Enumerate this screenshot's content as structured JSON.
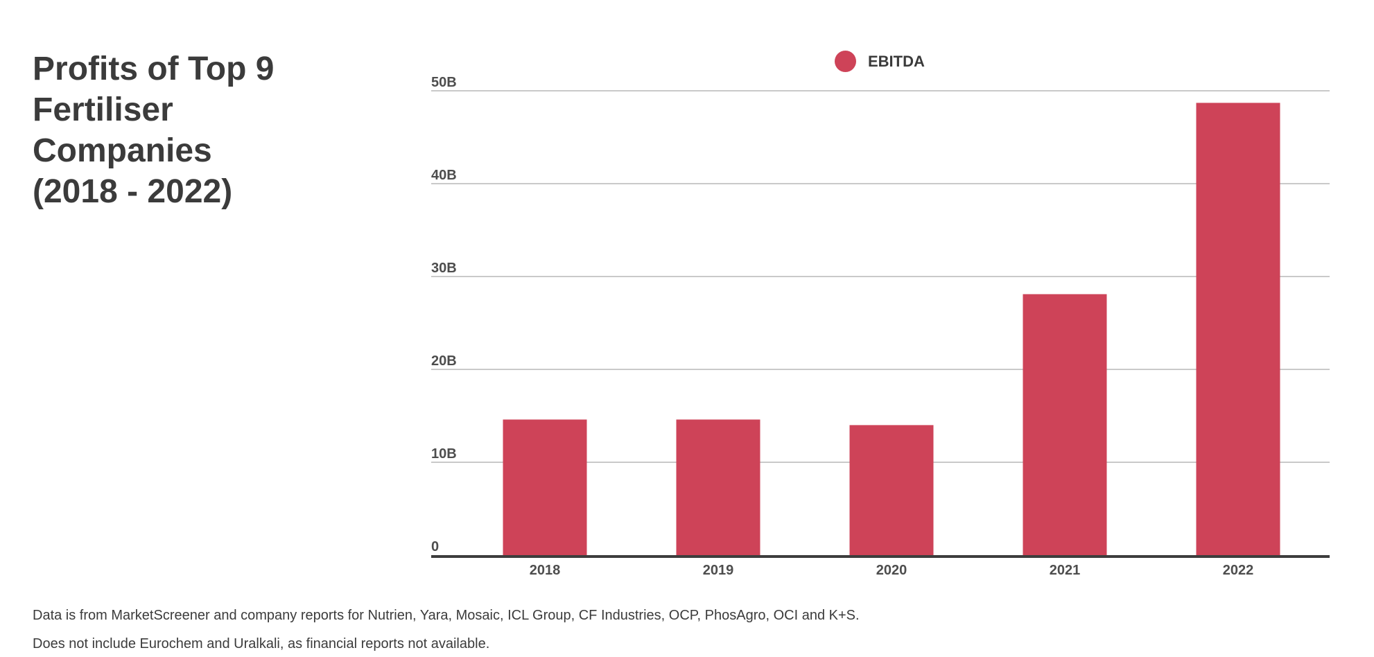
{
  "header": {
    "title": "Profits of Top 9\nFertiliser\nCompanies\n(2018 - 2022)"
  },
  "legend": {
    "label": "EBITDA",
    "color": "#ce4358"
  },
  "chart_data": {
    "type": "bar",
    "title": "Profits of Top 9 Fertiliser Companies (2018 - 2022)",
    "series": [
      {
        "name": "EBITDA",
        "values": [
          14.6,
          14.6,
          14.0,
          28.1,
          48.7
        ]
      }
    ],
    "categories": [
      "2018",
      "2019",
      "2020",
      "2021",
      "2022"
    ],
    "unit": "billions (B)",
    "ylim": [
      0,
      50
    ],
    "yticks": [
      {
        "value": 0,
        "label": "0"
      },
      {
        "value": 10,
        "label": "10B"
      },
      {
        "value": 20,
        "label": "20B"
      },
      {
        "value": 30,
        "label": "30B"
      },
      {
        "value": 40,
        "label": "40B"
      },
      {
        "value": 50,
        "label": "50B"
      }
    ],
    "bar_color": "#ce4358",
    "gridline_color": "#c9c9c9",
    "axis_color": "#3d3d3d",
    "tick_label_color": "#4d4d4d",
    "grid": true,
    "legend_position": "top-center"
  },
  "footer": {
    "line1": "Data is from MarketScreener and company reports for Nutrien, Yara,  Mosaic, ICL Group, CF Industries, OCP, PhosAgro, OCI and K+S.",
    "line2": "Does not include Eurochem and Uralkali, as financial reports not available."
  }
}
